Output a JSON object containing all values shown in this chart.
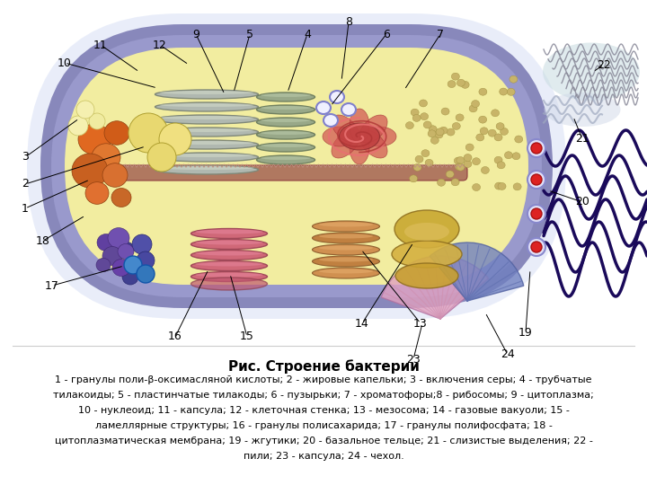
{
  "title": "Рис. Строение бактерии",
  "caption_line1": "1 - гранулы поли-β-оксимасляной кислоты; 2 - жировые капельки; 3 - включения серы; 4 - трубчатые",
  "caption_line2": "тилакоиды; 5 - пластинчатые тилакоды; 6 - пузырьки; 7 - хроматофоры;8 - рибосомы; 9 - цитоплазма;",
  "caption_line3": "10 - нуклеоид; 11 - капсула; 12 - клеточная стенка; 13 - мезосома; 14 - газовые вакуоли; 15 -",
  "caption_line4": "ламеллярные структуры; 16 - гранулы полисахарида; 17 - гранулы полифосфата; 18 -",
  "caption_line5": "цитоплазматическая мембрана; 19 - жгутики; 20 - базальное тельце; 21 - слизистые выделения; 22 -",
  "caption_line6": "пили; 23 - капсула; 24 - чехол.",
  "bg_color": "#ffffff"
}
